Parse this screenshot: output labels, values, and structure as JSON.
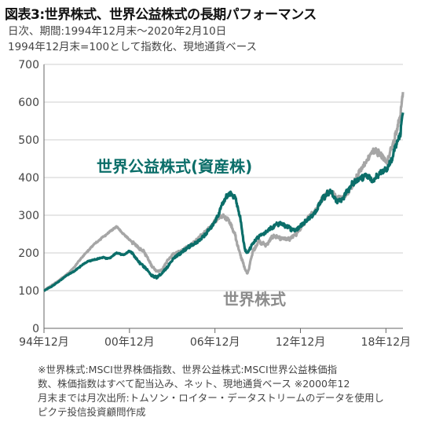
{
  "title": "図表3:世界株式、世界公益株式の長期パフォーマンス",
  "subtitle_lines": [
    "日次、期間:1994年12月末〜2020年2月10日",
    "1994年12月末=100として指数化、現地通貨ベース"
  ],
  "notes": [
    "※世界株式:MSCI世界株価指数、世界公益株式:MSCI世界公益株価指",
    "数、株価指数はすべて配当込み、ネット、現地通貨ベース ※2000年12",
    "月末までは月次出所:トムソン・ロイター・データストリームのデータを使用し",
    "ピクテ投信投資顧問作成"
  ],
  "chart_data": {
    "type": "line",
    "ylim": [
      0,
      700
    ],
    "y_ticks": [
      0,
      100,
      200,
      300,
      400,
      500,
      600,
      700
    ],
    "x_range": [
      1994.917,
      2020.11
    ],
    "x_ticks": [
      {
        "x": 1994.917,
        "label": "94年12月"
      },
      {
        "x": 2000.917,
        "label": "00年12月"
      },
      {
        "x": 2006.917,
        "label": "06年12月"
      },
      {
        "x": 2012.917,
        "label": "12年12月"
      },
      {
        "x": 2018.917,
        "label": "18年12月"
      }
    ],
    "grid": "horizontal",
    "colors": {
      "utilities": "#0b6e69",
      "world": "#a6a6a6"
    },
    "series": [
      {
        "name": "世界公益株式(資産株)",
        "x": [
          1994.917,
          1995.5,
          1996.0,
          1996.5,
          1997.0,
          1997.5,
          1998.0,
          1998.5,
          1999.0,
          1999.5,
          2000.0,
          2000.5,
          2000.917,
          2001.5,
          2002.0,
          2002.5,
          2002.8,
          2003.2,
          2003.6,
          2004.0,
          2004.5,
          2005.0,
          2005.5,
          2006.0,
          2006.5,
          2007.0,
          2007.5,
          2007.9,
          2008.3,
          2008.7,
          2009.0,
          2009.2,
          2009.6,
          2010.0,
          2010.5,
          2011.0,
          2011.5,
          2012.0,
          2012.5,
          2013.0,
          2013.5,
          2014.0,
          2014.5,
          2015.0,
          2015.5,
          2016.0,
          2016.5,
          2017.0,
          2017.5,
          2018.0,
          2018.5,
          2019.0,
          2019.5,
          2019.9,
          2020.11
        ],
        "values": [
          100,
          112,
          125,
          140,
          150,
          165,
          178,
          182,
          188,
          185,
          200,
          195,
          205,
          180,
          160,
          140,
          135,
          145,
          165,
          185,
          200,
          215,
          225,
          240,
          260,
          290,
          335,
          360,
          350,
          290,
          210,
          200,
          225,
          245,
          255,
          270,
          280,
          268,
          260,
          275,
          290,
          310,
          345,
          365,
          335,
          350,
          380,
          395,
          405,
          390,
          410,
          420,
          470,
          510,
          575
        ]
      },
      {
        "name": "世界株式",
        "x": [
          1994.917,
          1995.5,
          1996.0,
          1996.5,
          1997.0,
          1997.5,
          1998.0,
          1998.5,
          1999.0,
          1999.5,
          2000.0,
          2000.5,
          2000.917,
          2001.5,
          2002.0,
          2002.5,
          2002.8,
          2003.2,
          2003.6,
          2004.0,
          2004.5,
          2005.0,
          2005.5,
          2006.0,
          2006.5,
          2007.0,
          2007.5,
          2007.9,
          2008.3,
          2008.7,
          2009.0,
          2009.2,
          2009.6,
          2010.0,
          2010.5,
          2011.0,
          2011.5,
          2012.0,
          2012.5,
          2013.0,
          2013.5,
          2014.0,
          2014.5,
          2015.0,
          2015.5,
          2016.0,
          2016.5,
          2017.0,
          2017.5,
          2018.0,
          2018.5,
          2019.0,
          2019.5,
          2019.9,
          2020.11
        ],
        "values": [
          100,
          115,
          128,
          142,
          160,
          185,
          205,
          225,
          240,
          255,
          270,
          250,
          235,
          215,
          200,
          165,
          150,
          155,
          180,
          200,
          205,
          215,
          228,
          250,
          265,
          285,
          300,
          285,
          250,
          195,
          160,
          145,
          205,
          230,
          220,
          245,
          240,
          235,
          245,
          270,
          295,
          315,
          345,
          365,
          345,
          350,
          375,
          410,
          440,
          470,
          465,
          440,
          500,
          560,
          630
        ]
      }
    ],
    "annotations": [
      {
        "text": "世界公益株式(資産株)",
        "series": "utilities"
      },
      {
        "text": "世界株式",
        "series": "world"
      }
    ]
  }
}
